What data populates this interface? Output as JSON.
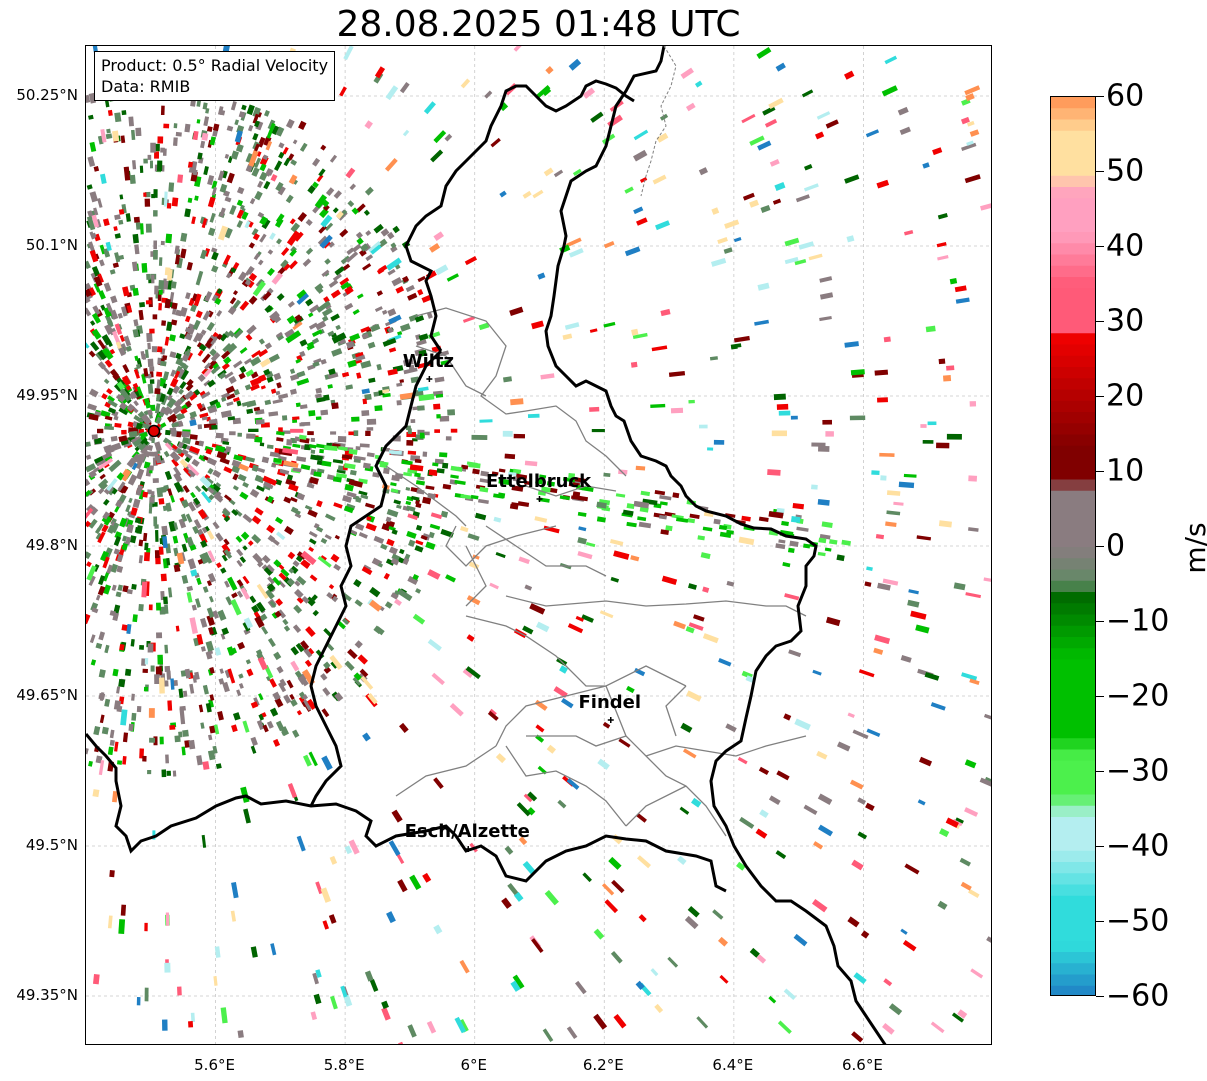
{
  "title": "28.08.2025 01:48 UTC",
  "info": {
    "product": "Product: 0.5° Radial Velocity",
    "data_source": "Data: RMIB"
  },
  "axes": {
    "lat_ticks": [
      "50.25°N",
      "50.1°N",
      "49.95°N",
      "49.8°N",
      "49.65°N",
      "49.5°N",
      "49.35°N"
    ],
    "lon_ticks": [
      "5.6°E",
      "5.8°E",
      "6°E",
      "6.2°E",
      "6.4°E",
      "6.6°E"
    ],
    "lat_values": [
      50.25,
      50.1,
      49.95,
      49.8,
      49.65,
      49.5,
      49.35
    ],
    "lon_values": [
      5.6,
      5.8,
      6.0,
      6.2,
      6.4,
      6.6
    ],
    "lon_range": [
      5.4,
      6.8
    ],
    "lat_range": [
      49.3,
      50.3
    ],
    "grid": true
  },
  "cities": [
    {
      "name": "Wiltz",
      "lon": 5.93,
      "lat": 49.967
    },
    {
      "name": "Ettelbruck",
      "lon": 6.1,
      "lat": 49.847
    },
    {
      "name": "Findel",
      "lon": 6.21,
      "lat": 49.626
    },
    {
      "name": "Esch/Alzette",
      "lon": 5.99,
      "lat": 49.497
    }
  ],
  "radar_site": {
    "lon": 5.505,
    "lat": 49.915
  },
  "colorbar": {
    "label": "m/s",
    "min": -60,
    "max": 60,
    "ticks": [
      "60",
      "50",
      "40",
      "30",
      "20",
      "10",
      "0",
      "−10",
      "−20",
      "−30",
      "−40",
      "−50",
      "−60"
    ],
    "tick_values": [
      60,
      50,
      40,
      30,
      20,
      10,
      0,
      -10,
      -20,
      -30,
      -40,
      -50,
      -60
    ],
    "colors": {
      "neg_strong": "#1f7fc4",
      "neg_cyan": "#30dcdc",
      "neg_light": "#b4eef0",
      "neg_green_light": "#4cf04c",
      "neg_green": "#00c000",
      "neg_green_dark": "#006400",
      "zero_green": "#5e8a62",
      "zero": "#8a7c80",
      "pos_dark": "#800000",
      "pos_red": "#f00000",
      "pos_pink": "#ff5a78",
      "pos_lightpink": "#ffa0c0",
      "pos_peach": "#ffe0a0",
      "pos_orange": "#ff9050"
    }
  }
}
